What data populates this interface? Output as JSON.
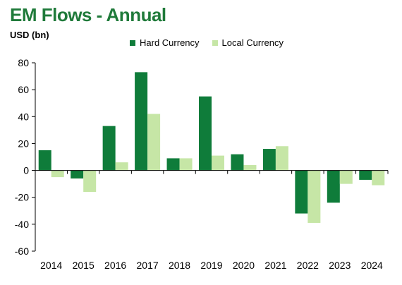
{
  "chart_data": {
    "type": "bar",
    "title": "EM Flows - Annual",
    "ylabel": "USD (bn)",
    "xlabel": "",
    "categories": [
      "2014",
      "2015",
      "2016",
      "2017",
      "2018",
      "2019",
      "2020",
      "2021",
      "2022",
      "2023",
      "2024"
    ],
    "series": [
      {
        "name": "Hard Currency",
        "color": "#0f7c3a",
        "values": [
          15,
          -6,
          33,
          73,
          9,
          55,
          12,
          16,
          -32,
          -24,
          -7
        ]
      },
      {
        "name": "Local Currency",
        "color": "#c6e6a6",
        "values": [
          -5,
          -16,
          6,
          42,
          9,
          11,
          4,
          18,
          -39,
          -10,
          -11
        ]
      }
    ],
    "ylim": [
      -60,
      80
    ],
    "yticks": [
      -60,
      -40,
      -20,
      0,
      20,
      40,
      60,
      80
    ],
    "grid": false,
    "legend": "top"
  }
}
